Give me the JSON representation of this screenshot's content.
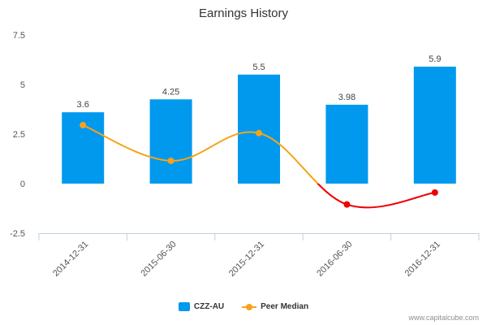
{
  "chart_data": {
    "type": "bar",
    "title": "Earnings History",
    "categories": [
      "2014-12-31",
      "2015-06-30",
      "2015-12-31",
      "2016-06-30",
      "2016-12-31"
    ],
    "series": [
      {
        "name": "CZZ-AU",
        "kind": "bar",
        "color": "#0099ee",
        "values": [
          3.6,
          4.25,
          5.5,
          3.98,
          5.9
        ],
        "labels": [
          "3.6",
          "4.25",
          "5.5",
          "3.98",
          "5.9"
        ]
      },
      {
        "name": "Peer Median",
        "kind": "line",
        "color": "#f7a21b",
        "negative_color": "#ee0000",
        "values": [
          2.95,
          1.15,
          2.55,
          -1.05,
          -0.45
        ]
      }
    ],
    "ylim": [
      -2.5,
      7.5
    ],
    "yticks": [
      "-2.5",
      "0",
      "2.5",
      "5",
      "7.5"
    ],
    "ytick_values": [
      -2.5,
      0,
      2.5,
      5,
      7.5
    ],
    "grid": false,
    "legend_position": "bottom"
  },
  "credit": "www.capitalcube.com"
}
